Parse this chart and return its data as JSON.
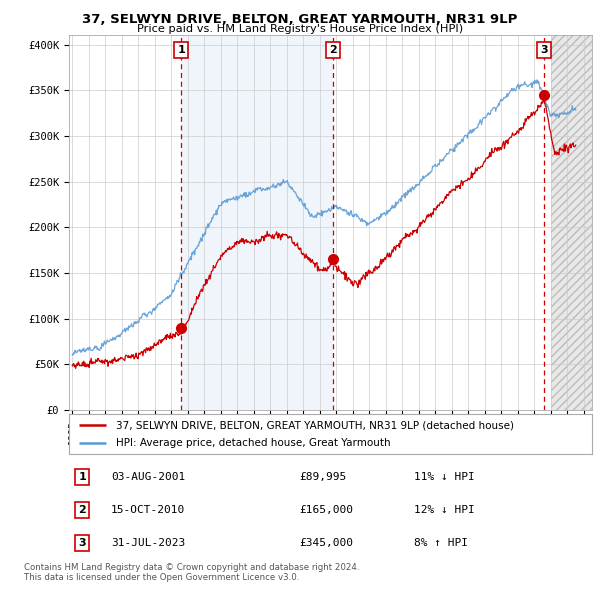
{
  "title": "37, SELWYN DRIVE, BELTON, GREAT YARMOUTH, NR31 9LP",
  "subtitle": "Price paid vs. HM Land Registry's House Price Index (HPI)",
  "ylabel_ticks": [
    "£0",
    "£50K",
    "£100K",
    "£150K",
    "£200K",
    "£250K",
    "£300K",
    "£350K",
    "£400K"
  ],
  "ytick_values": [
    0,
    50000,
    100000,
    150000,
    200000,
    250000,
    300000,
    350000,
    400000
  ],
  "ylim": [
    0,
    410000
  ],
  "xlim_start": 1994.8,
  "xlim_end": 2026.5,
  "legend_line1": "37, SELWYN DRIVE, BELTON, GREAT YARMOUTH, NR31 9LP (detached house)",
  "legend_line2": "HPI: Average price, detached house, Great Yarmouth",
  "transaction1": {
    "num": "1",
    "date": "03-AUG-2001",
    "price": "£89,995",
    "pct": "11% ↓ HPI"
  },
  "transaction2": {
    "num": "2",
    "date": "15-OCT-2010",
    "price": "£165,000",
    "pct": "12% ↓ HPI"
  },
  "transaction3": {
    "num": "3",
    "date": "31-JUL-2023",
    "price": "£345,000",
    "pct": "8% ↑ HPI"
  },
  "footnote1": "Contains HM Land Registry data © Crown copyright and database right 2024.",
  "footnote2": "This data is licensed under the Open Government Licence v3.0.",
  "hpi_color": "#5b9bd5",
  "price_color": "#cc0000",
  "sale_marker_color": "#cc0000",
  "vline_color": "#cc0000",
  "background_color": "#ffffff",
  "grid_color": "#cccccc",
  "shade_between_color": "#ddeeff",
  "future_shade_color": "#dddddd",
  "sale1_x": 2001.59,
  "sale1_y": 89995,
  "sale2_x": 2010.79,
  "sale2_y": 165000,
  "sale3_x": 2023.58,
  "sale3_y": 345000
}
